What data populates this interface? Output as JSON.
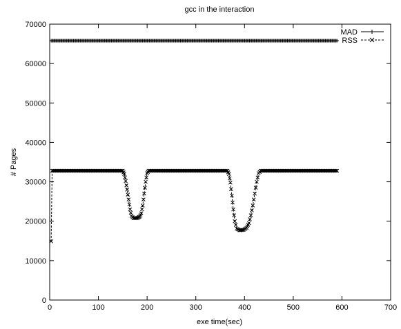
{
  "chart_data": {
    "type": "line",
    "title": "gcc in the interaction",
    "xlabel": "exe time(sec)",
    "ylabel": "# Pages",
    "xlim": [
      0,
      700
    ],
    "ylim": [
      0,
      70000
    ],
    "xticks": [
      0,
      100,
      200,
      300,
      400,
      500,
      600,
      700
    ],
    "yticks": [
      0,
      10000,
      20000,
      30000,
      40000,
      50000,
      60000,
      70000
    ],
    "grid": false,
    "legend_position": "top-right",
    "series": [
      {
        "name": "MAD",
        "color": "#000000",
        "line_style": "solid",
        "marker": "plus",
        "points": [
          [
            3,
            65800
          ],
          [
            590,
            65800
          ]
        ]
      },
      {
        "name": "RSS",
        "color": "#000000",
        "line_style": "dashed",
        "marker": "x",
        "points": [
          [
            3,
            14900
          ],
          [
            5,
            32800
          ],
          [
            150,
            32800
          ],
          [
            153,
            32000
          ],
          [
            156,
            30200
          ],
          [
            159,
            28000
          ],
          [
            162,
            25500
          ],
          [
            165,
            23000
          ],
          [
            168,
            21300
          ],
          [
            172,
            20800
          ],
          [
            180,
            20800
          ],
          [
            185,
            21200
          ],
          [
            188,
            22000
          ],
          [
            191,
            24000
          ],
          [
            194,
            27000
          ],
          [
            197,
            30000
          ],
          [
            200,
            32200
          ],
          [
            203,
            32800
          ],
          [
            365,
            32800
          ],
          [
            368,
            32000
          ],
          [
            371,
            29800
          ],
          [
            374,
            26500
          ],
          [
            377,
            23000
          ],
          [
            380,
            20000
          ],
          [
            384,
            18100
          ],
          [
            390,
            17700
          ],
          [
            398,
            17800
          ],
          [
            404,
            18300
          ],
          [
            409,
            19500
          ],
          [
            413,
            21500
          ],
          [
            417,
            24000
          ],
          [
            421,
            27000
          ],
          [
            425,
            30000
          ],
          [
            429,
            32200
          ],
          [
            433,
            32800
          ],
          [
            590,
            32800
          ]
        ]
      }
    ]
  }
}
